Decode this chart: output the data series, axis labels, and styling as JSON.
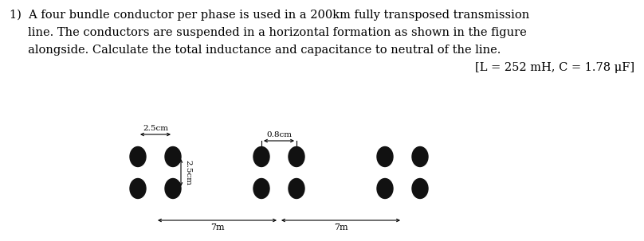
{
  "line1": "1)  A four bundle conductor per phase is used in a 200km fully transposed transmission",
  "line2": "     line. The conductors are suspended in a horizontal formation as shown in the figure",
  "line3": "     alongside. Calculate the total inductance and capacitance to neutral of the line.",
  "answer_text": "[L = 252 mH, C = 1.78 μF]",
  "background_color": "#ffffff",
  "text_color": "#000000",
  "conductor_color": "#111111",
  "fig_width": 8.08,
  "fig_height": 3.03,
  "dpi": 100,
  "label_25cm": "2.5cm",
  "label_08cm": "0.8cm",
  "label_7m_left": "7m",
  "label_7m_right": "7m",
  "font_size_main": 10.5,
  "font_size_answer": 10.5,
  "font_size_dim": 7.5
}
